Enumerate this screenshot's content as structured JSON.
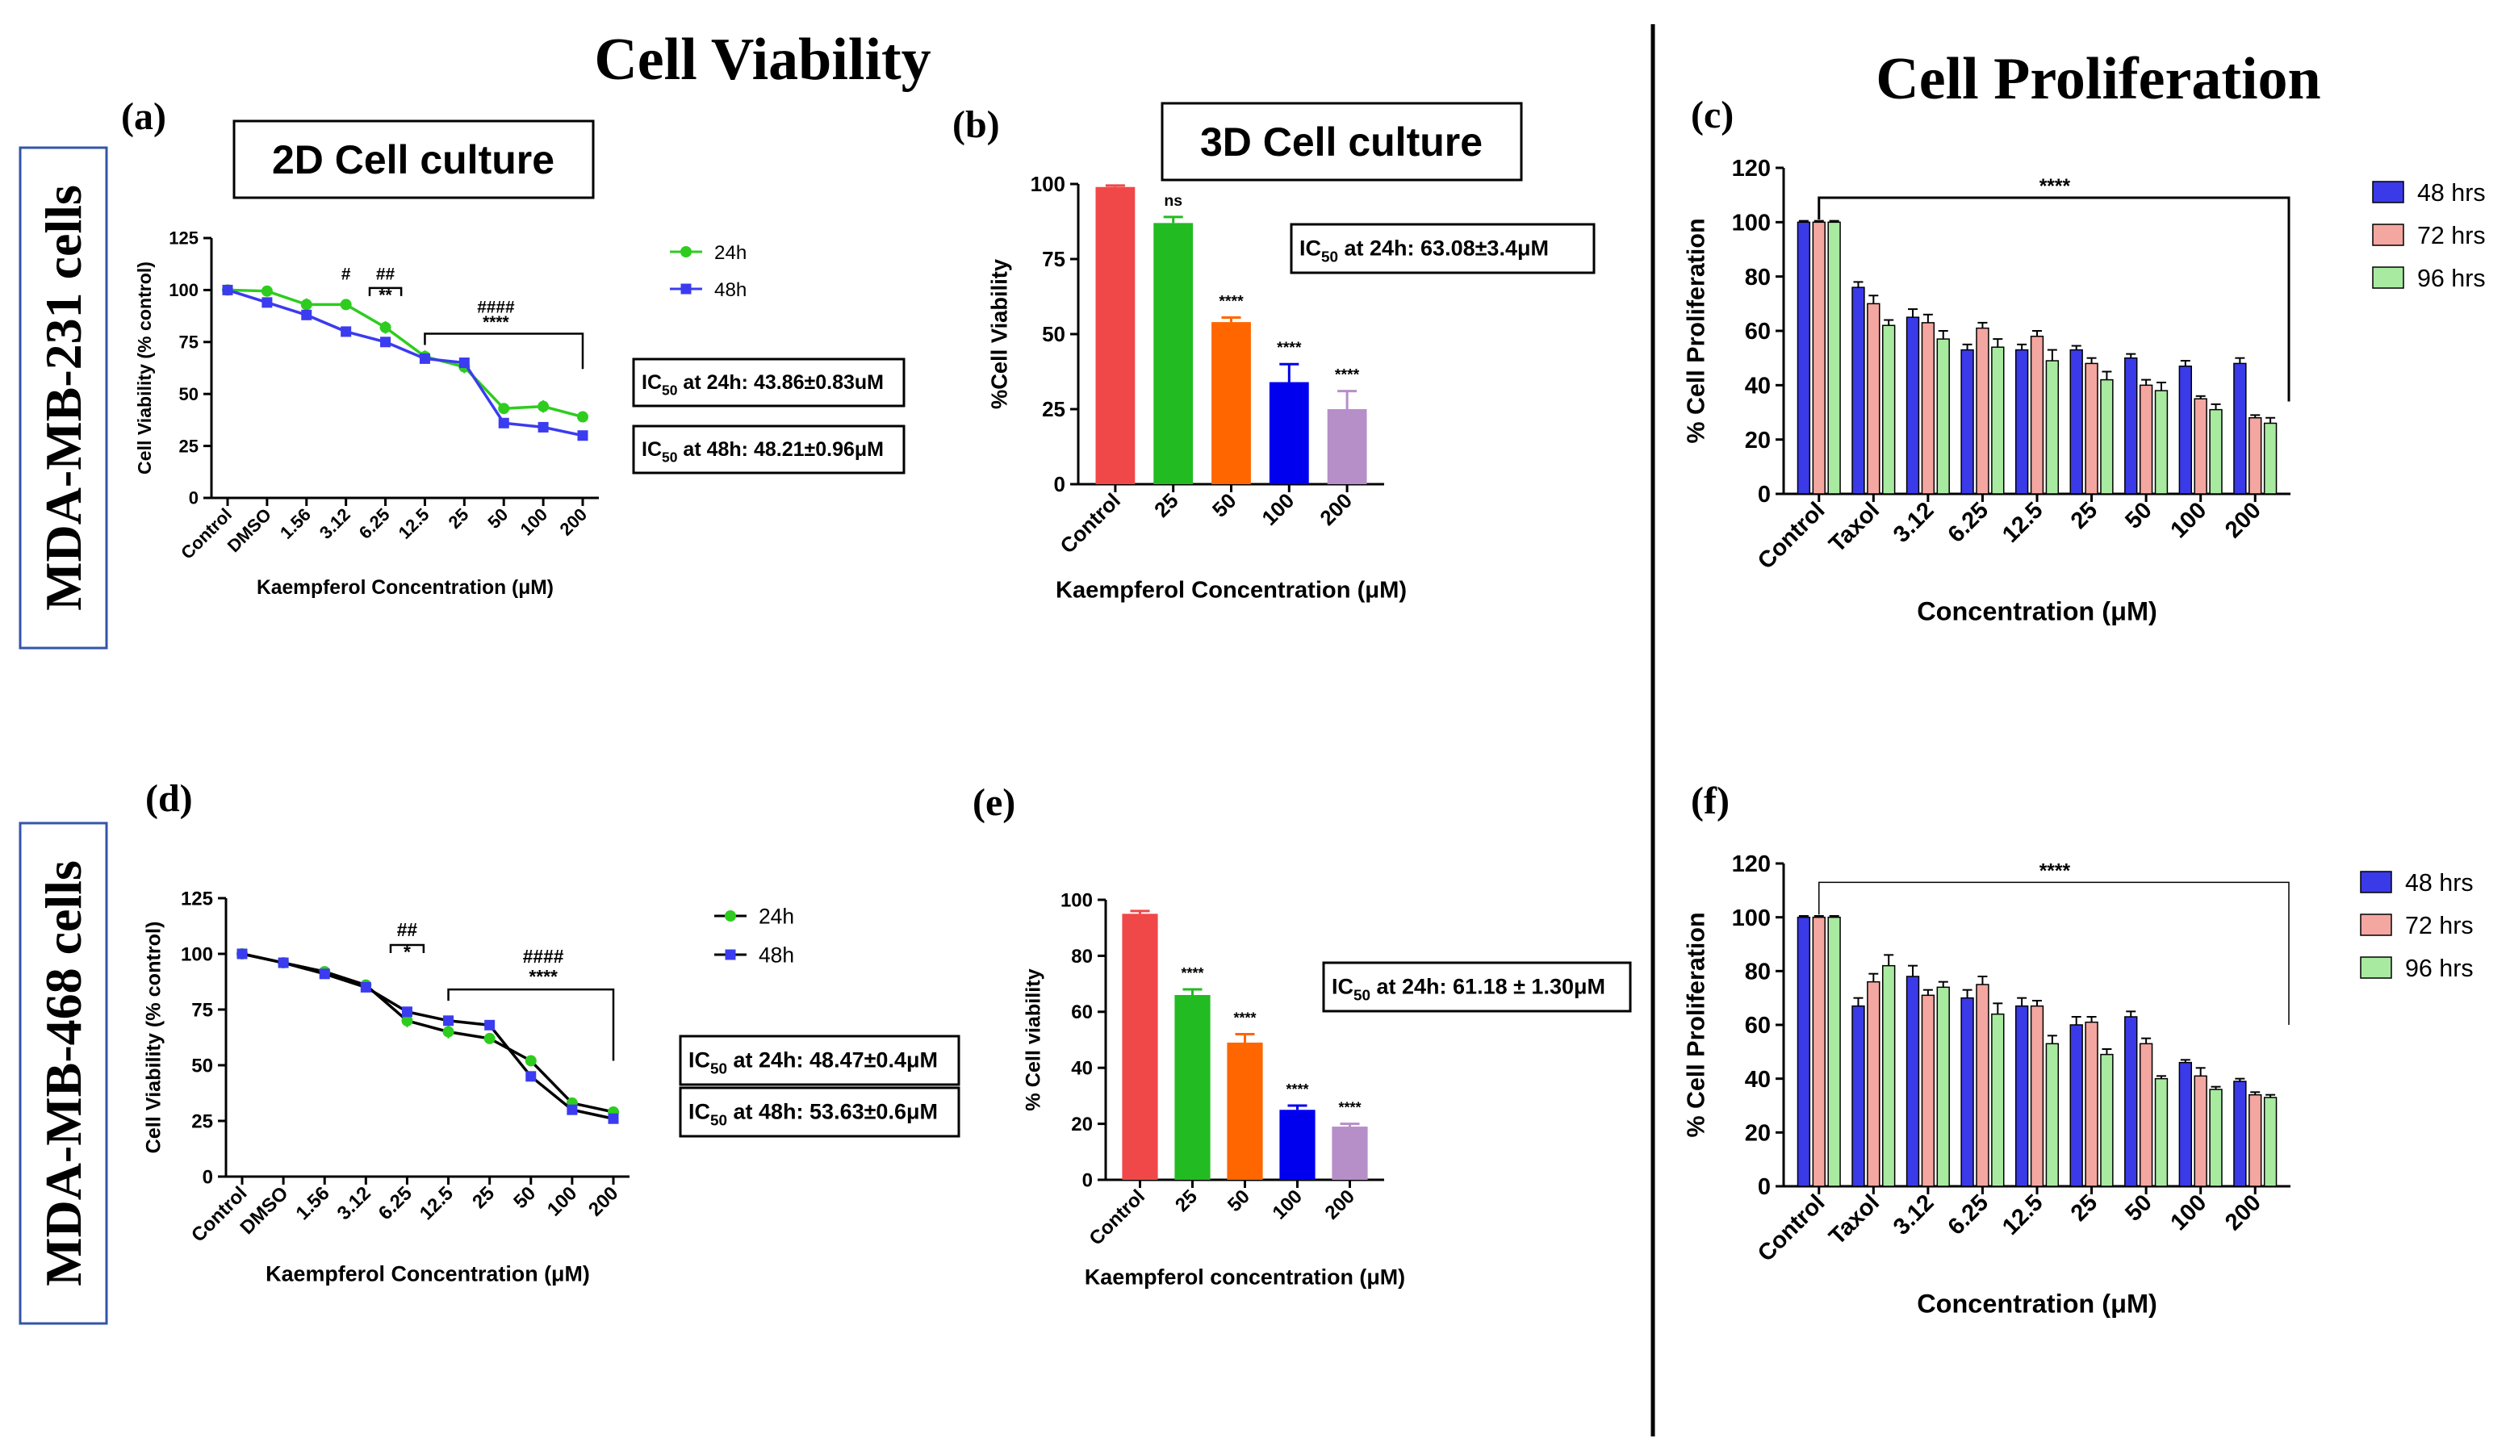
{
  "headings": {
    "viability": "Cell Viability",
    "proliferation": "Cell Proliferation",
    "row1": "MDA-MB-231 cells",
    "row2": "MDA-MB-468 cells",
    "culture2d": "2D Cell culture",
    "culture3d": "3D Cell culture"
  },
  "colors": {
    "green_line": "#2ecc1f",
    "blue_line": "#3b3bf0",
    "black_line": "#000000",
    "bar_control": "#f04848",
    "bar_25": "#22bb22",
    "bar_50": "#ff6600",
    "bar_100": "#0000ee",
    "bar_200": "#b68ec8",
    "c48": "#3a3ae8",
    "c72": "#f4a6a0",
    "c96": "#a8eaa0",
    "frame_blue": "#3355aa"
  },
  "chart_data": [
    {
      "id": "a",
      "panel_label": "(a)",
      "type": "line",
      "categories": [
        "Control",
        "DMSO",
        "1.56",
        "3.12",
        "6.25",
        "12.5",
        "25",
        "50",
        "100",
        "200"
      ],
      "xlabel": "Kaempferol Concentration (μM)",
      "ylabel": "Cell Viability (% control)",
      "ylim": [
        0,
        125
      ],
      "yticks": [
        "0",
        "25",
        "50",
        "75",
        "100",
        "125"
      ],
      "legend": "right",
      "series": [
        {
          "name": "24h",
          "color": "green_line",
          "values": [
            100,
            99.5,
            93,
            93,
            82,
            68,
            63,
            43,
            44,
            39
          ],
          "errors": [
            1,
            2,
            3,
            2,
            3,
            3,
            3,
            2,
            3,
            2
          ]
        },
        {
          "name": "48h",
          "color": "blue_line",
          "values": [
            100,
            94,
            88,
            80,
            75,
            67,
            65,
            36,
            34,
            30
          ],
          "errors": [
            1,
            1,
            2,
            2,
            2,
            2,
            2,
            1,
            1,
            1
          ]
        }
      ],
      "annotations": [
        {
          "text": "#",
          "cat": 3,
          "y": 105
        },
        {
          "text": "##",
          "cat": 4,
          "y": 105
        },
        {
          "text": "**",
          "cat": 4,
          "y": 95
        },
        {
          "text": "####",
          "cat": 6.8,
          "y": 89
        },
        {
          "text": "****",
          "cat": 6.8,
          "y": 82
        }
      ],
      "ic50": [
        "IC50 at 24h: 43.86±0.83uM",
        "IC50 at 48h: 48.21±0.96μM"
      ]
    },
    {
      "id": "b",
      "panel_label": "(b)",
      "type": "bar",
      "categories": [
        "Control",
        "25",
        "50",
        "100",
        "200"
      ],
      "xlabel": "Kaempferol Concentration (μM)",
      "ylabel": "%Cell Viability",
      "ylim": [
        0,
        100
      ],
      "yticks": [
        "0",
        "25",
        "50",
        "75",
        "100"
      ],
      "values": [
        99,
        87,
        54,
        34,
        25
      ],
      "errors": [
        0.5,
        2,
        1.5,
        6,
        6
      ],
      "colors": [
        "bar_control",
        "bar_25",
        "bar_50",
        "bar_100",
        "bar_200"
      ],
      "sig": [
        "",
        "ns",
        "****",
        "****",
        "****"
      ],
      "ic50": [
        "IC50 at 24h: 63.08±3.4μM"
      ]
    },
    {
      "id": "c",
      "panel_label": "(c)",
      "type": "bar",
      "categories": [
        "Control",
        "Taxol",
        "3.12",
        "6.25",
        "12.5",
        "25",
        "50",
        "100",
        "200"
      ],
      "xlabel": "Concentration (μM)",
      "ylabel": "% Cell Proliferation",
      "ylim": [
        0,
        120
      ],
      "yticks": [
        "0",
        "20",
        "40",
        "60",
        "80",
        "100",
        "120"
      ],
      "legend": "right",
      "series": [
        {
          "name": "48 hrs",
          "color": "c48",
          "values": [
            100,
            76,
            65,
            53,
            53,
            53,
            50,
            47,
            48
          ],
          "errors": [
            0.5,
            2,
            3,
            2,
            2,
            1.5,
            1.5,
            2,
            2
          ]
        },
        {
          "name": "72 hrs",
          "color": "c72",
          "values": [
            100,
            70,
            63,
            61,
            58,
            48,
            40,
            35,
            28
          ],
          "errors": [
            0.5,
            3,
            3,
            2,
            2,
            2,
            2,
            1,
            1
          ]
        },
        {
          "name": "96 hrs",
          "color": "c96",
          "values": [
            100,
            62,
            57,
            54,
            49,
            42,
            38,
            31,
            26
          ],
          "errors": [
            0.5,
            2,
            3,
            3,
            4,
            3,
            3,
            2,
            2
          ]
        }
      ],
      "sig": "****"
    },
    {
      "id": "d",
      "panel_label": "(d)",
      "type": "line",
      "categories": [
        "Control",
        "DMSO",
        "1.56",
        "3.12",
        "6.25",
        "12.5",
        "25",
        "50",
        "100",
        "200"
      ],
      "xlabel": "Kaempferol Concentration (μM)",
      "ylabel": "Cell Viability (% control)",
      "ylim": [
        0,
        125
      ],
      "yticks": [
        "0",
        "25",
        "50",
        "75",
        "100",
        "125"
      ],
      "legend": "right",
      "series": [
        {
          "name": "24h",
          "color": "green_line",
          "line": "black_line",
          "values": [
            100,
            96,
            92,
            86,
            70,
            65,
            62,
            52,
            33,
            29
          ],
          "errors": [
            1,
            1,
            2,
            2,
            3,
            3,
            2,
            2,
            1,
            1
          ]
        },
        {
          "name": "48h",
          "color": "blue_line",
          "line": "black_line",
          "values": [
            100,
            96,
            91,
            85,
            74,
            70,
            68,
            45,
            30,
            26
          ],
          "errors": [
            1,
            1,
            2,
            2,
            2,
            2,
            2,
            2,
            1,
            1
          ]
        }
      ],
      "annotations": [
        {
          "text": "##",
          "cat": 4,
          "y": 108
        },
        {
          "text": "*",
          "cat": 4,
          "y": 98
        },
        {
          "text": "####",
          "cat": 7.3,
          "y": 96
        },
        {
          "text": "****",
          "cat": 7.3,
          "y": 87
        }
      ],
      "ic50": [
        "IC50 at 24h: 48.47±0.4μM",
        "IC50 at 48h: 53.63±0.6μM"
      ]
    },
    {
      "id": "e",
      "panel_label": "(e)",
      "type": "bar",
      "categories": [
        "Control",
        "25",
        "50",
        "100",
        "200"
      ],
      "xlabel": "Kaempferol concentration (μM)",
      "ylabel": "% Cell viability",
      "ylim": [
        0,
        100
      ],
      "yticks": [
        "0",
        "20",
        "40",
        "60",
        "80",
        "100"
      ],
      "values": [
        95,
        66,
        49,
        25,
        19
      ],
      "errors": [
        1,
        2,
        3,
        1.5,
        1
      ],
      "colors": [
        "bar_control",
        "bar_25",
        "bar_50",
        "bar_100",
        "bar_200"
      ],
      "sig": [
        "",
        "****",
        "****",
        "****",
        "****"
      ],
      "ic50": [
        "IC50 at 24h: 61.18 ± 1.30μM"
      ]
    },
    {
      "id": "f",
      "panel_label": "(f)",
      "type": "bar",
      "categories": [
        "Control",
        "Taxol",
        "3.12",
        "6.25",
        "12.5",
        "25",
        "50",
        "100",
        "200"
      ],
      "xlabel": "Concentration (μM)",
      "ylabel": "% Cell Proliferation",
      "ylim": [
        0,
        120
      ],
      "yticks": [
        "0",
        "20",
        "40",
        "60",
        "80",
        "100",
        "120"
      ],
      "legend": "right",
      "series": [
        {
          "name": "48 hrs",
          "color": "c48",
          "values": [
            100,
            67,
            78,
            70,
            67,
            60,
            63,
            46,
            39
          ],
          "errors": [
            0.5,
            3,
            4,
            3,
            3,
            3,
            2,
            1,
            1
          ]
        },
        {
          "name": "72 hrs",
          "color": "c72",
          "values": [
            100,
            76,
            71,
            75,
            67,
            61,
            53,
            41,
            34
          ],
          "errors": [
            0.5,
            3,
            2,
            3,
            2,
            2,
            2,
            3,
            1
          ]
        },
        {
          "name": "96 hrs",
          "color": "c96",
          "values": [
            100,
            82,
            74,
            64,
            53,
            49,
            40,
            36,
            33
          ],
          "errors": [
            0.5,
            4,
            2,
            4,
            3,
            2,
            1,
            1,
            1
          ]
        }
      ],
      "sig": "****"
    }
  ]
}
